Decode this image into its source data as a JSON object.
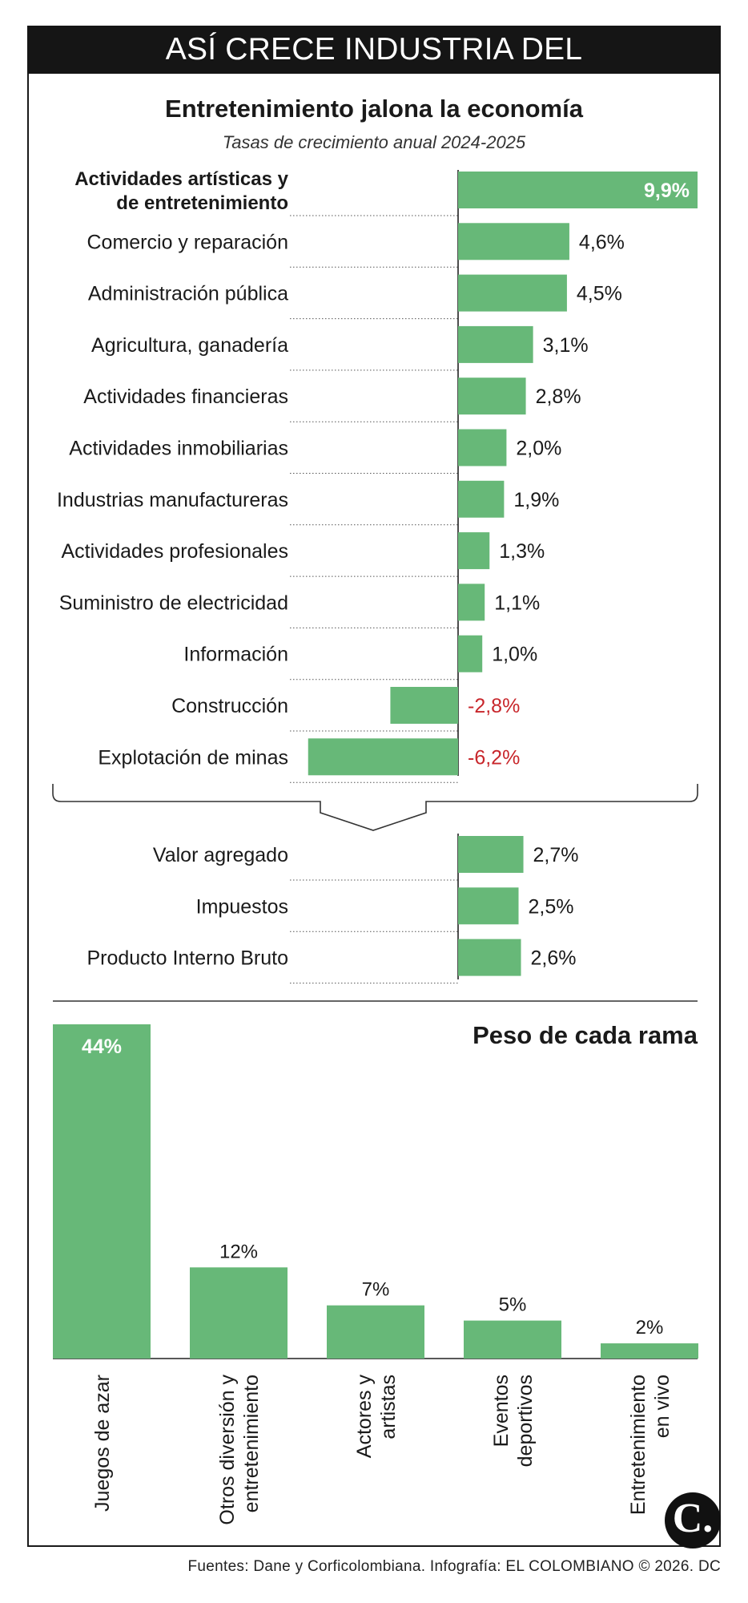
{
  "header": {
    "banner": "ASÍ CRECE INDUSTRIA DEL ENTRETENIMIENTO"
  },
  "colors": {
    "bar": "#67b878",
    "negative_label": "#c8262b",
    "banner_bg": "#151515"
  },
  "chart_data": [
    {
      "type": "bar",
      "orientation": "horizontal",
      "title": "Entretenimiento jalona la economía",
      "subtitle": "Tasas de crecimiento anual 2024-2025",
      "categories": [
        "Actividades artísticas y de entretenimiento",
        "Comercio y reparación",
        "Administración pública",
        "Agricultura, ganadería",
        "Actividades financieras",
        "Actividades inmobiliarias",
        "Industrias manufactureras",
        "Actividades profesionales",
        "Suministro de electricidad",
        "Información",
        "Construcción",
        "Explotación de minas"
      ],
      "category_lines": [
        [
          "Actividades artísticas y",
          "de entretenimiento"
        ],
        [
          "Comercio y reparación"
        ],
        [
          "Administración pública"
        ],
        [
          "Agricultura, ganadería"
        ],
        [
          "Actividades financieras"
        ],
        [
          "Actividades inmobiliarias"
        ],
        [
          "Industrias manufactureras"
        ],
        [
          "Actividades profesionales"
        ],
        [
          "Suministro de electricidad"
        ],
        [
          "Información"
        ],
        [
          "Construcción"
        ],
        [
          "Explotación de minas"
        ]
      ],
      "values": [
        9.9,
        4.6,
        4.5,
        3.1,
        2.8,
        2.0,
        1.9,
        1.3,
        1.1,
        1.0,
        -2.8,
        -6.2
      ],
      "labels": [
        "9,9%",
        "4,6%",
        "4,5%",
        "3,1%",
        "2,8%",
        "2,0%",
        "1,9%",
        "1,3%",
        "1,1%",
        "1,0%",
        "-2,8%",
        "-6,2%"
      ],
      "highlight": "Actividades artísticas y de entretenimiento"
    },
    {
      "type": "bar",
      "orientation": "horizontal",
      "categories": [
        "Valor agregado",
        "Impuestos",
        "Producto Interno Bruto"
      ],
      "values": [
        2.7,
        2.5,
        2.6
      ],
      "labels": [
        "2,7%",
        "2,5%",
        "2,6%"
      ]
    },
    {
      "type": "bar",
      "orientation": "vertical",
      "title": "Peso de cada rama",
      "categories": [
        "Juegos de azar",
        "Otros diversión y entretenimiento",
        "Actores y artistas",
        "Eventos deportivos",
        "Entretenimiento en vivo"
      ],
      "category_lines": [
        [
          "Juegos de azar"
        ],
        [
          "Otros diversión y",
          "entretenimiento"
        ],
        [
          "Actores y",
          "artistas"
        ],
        [
          "Eventos",
          "deportivos"
        ],
        [
          "Entretenimiento",
          "en vivo"
        ]
      ],
      "values": [
        44,
        12,
        7,
        5,
        2
      ],
      "labels": [
        "44%",
        "12%",
        "7%",
        "5%",
        "2%"
      ]
    }
  ],
  "footer": {
    "source": "Fuentes: Dane y Corficolombiana. Infografía: EL COLOMBIANO © 2026. DC",
    "logo": "C."
  }
}
